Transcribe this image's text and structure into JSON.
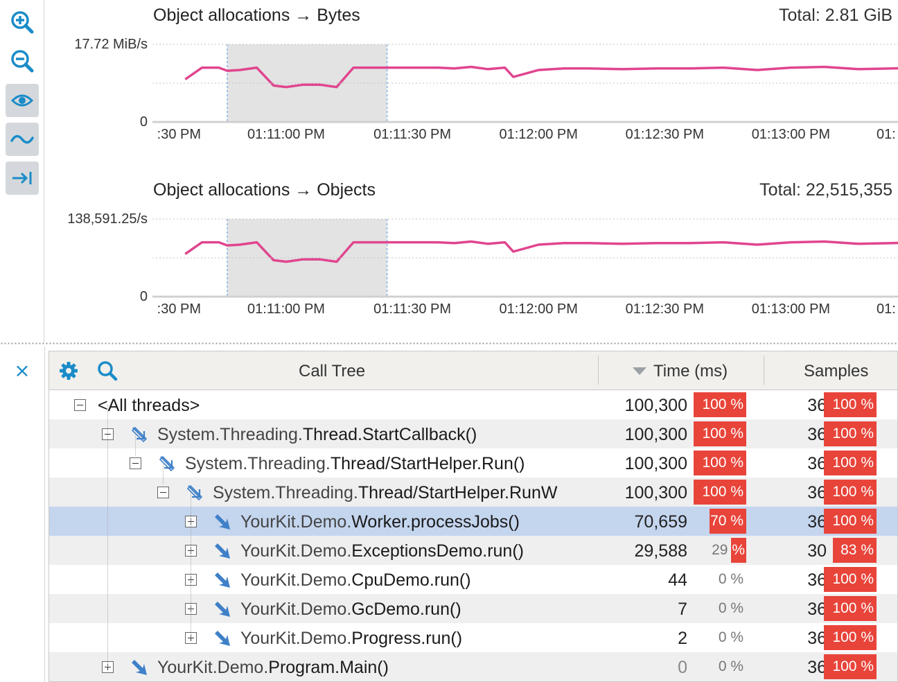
{
  "toolbar": {
    "buttons": [
      {
        "name": "zoom-in-button",
        "icon": "zoom-in-icon",
        "pressed": false
      },
      {
        "name": "zoom-out-button",
        "icon": "zoom-out-icon",
        "pressed": false
      },
      {
        "name": "show-values-button",
        "icon": "eye-icon",
        "pressed": true
      },
      {
        "name": "smooth-button",
        "icon": "wave-icon",
        "pressed": true
      },
      {
        "name": "scroll-to-end-button",
        "icon": "arrow-to-end-icon",
        "pressed": true
      }
    ]
  },
  "colors": {
    "accent": "#1a8cc8",
    "series_line": "#e0458f",
    "selection_band": "#e3e3e3",
    "percent_bar": "#e8443a",
    "selected_row": "#c4d5ee"
  },
  "chart_data": [
    {
      "type": "line",
      "title": "Object allocations → Bytes",
      "total": "Total: 2.81 GiB",
      "y_max_label": "17.72 MiB/s",
      "y_min_label": "0",
      "xticks": [
        ":30 PM",
        "01:11:00 PM",
        "01:11:30 PM",
        "01:12:00 PM",
        "01:12:30 PM",
        "01:13:00 PM",
        "01:"
      ],
      "selection_range_s": [
        -14,
        24
      ],
      "series": [
        {
          "x_s": [
            -24,
            -20,
            -16,
            -14,
            -11,
            -7,
            -3,
            0,
            4,
            8,
            12,
            16,
            20,
            24,
            28,
            32,
            36,
            40,
            44,
            48,
            52,
            54,
            60,
            66,
            72,
            80,
            88,
            96,
            104,
            112,
            120,
            128,
            136,
            144,
            152,
            160,
            168,
            176,
            180,
            186,
            192,
            200,
            208,
            216,
            224,
            232,
            240,
            248,
            256,
            264,
            272,
            280,
            288,
            296,
            306
          ],
          "y": [
            0.55,
            0.7,
            0.7,
            0.66,
            0.67,
            0.7,
            0.47,
            0.45,
            0.48,
            0.48,
            0.45,
            0.7,
            0.7,
            0.7,
            0.7,
            0.7,
            0.7,
            0.69,
            0.71,
            0.68,
            0.7,
            0.58,
            0.67,
            0.69,
            0.69,
            0.68,
            0.69,
            0.69,
            0.7,
            0.67,
            0.7,
            0.71,
            0.68,
            0.69,
            0.7,
            0.7,
            0.71,
            0.72,
            0.7,
            0.67,
            0.69,
            0.7,
            0.71,
            0.7,
            0.72,
            0.7,
            0.66,
            0.7,
            0.71,
            0.71,
            0.67,
            0.7,
            0.71,
            0.7,
            0.69
          ]
        }
      ]
    },
    {
      "type": "line",
      "title": "Object allocations → Objects",
      "total": "Total: 22,515,355",
      "y_max_label": "138,591.25/s",
      "y_min_label": "0",
      "xticks": [
        ":30 PM",
        "01:11:00 PM",
        "01:11:30 PM",
        "01:12:00 PM",
        "01:12:30 PM",
        "01:13:00 PM",
        "01:"
      ],
      "selection_range_s": [
        -14,
        24
      ],
      "series": [
        {
          "x_s": [
            -24,
            -20,
            -16,
            -14,
            -11,
            -7,
            -3,
            0,
            4,
            8,
            12,
            16,
            20,
            24,
            28,
            32,
            36,
            40,
            44,
            48,
            52,
            54,
            60,
            66,
            72,
            80,
            88,
            96,
            104,
            112,
            120,
            128,
            136,
            144,
            152,
            160,
            168,
            176,
            180,
            186,
            192,
            200,
            208,
            216,
            224,
            232,
            240,
            248,
            256,
            264,
            272,
            280,
            288,
            296,
            306
          ],
          "y": [
            0.55,
            0.7,
            0.7,
            0.66,
            0.67,
            0.7,
            0.47,
            0.45,
            0.48,
            0.48,
            0.45,
            0.7,
            0.7,
            0.7,
            0.7,
            0.7,
            0.7,
            0.69,
            0.71,
            0.68,
            0.7,
            0.58,
            0.67,
            0.69,
            0.69,
            0.68,
            0.69,
            0.69,
            0.7,
            0.67,
            0.7,
            0.71,
            0.68,
            0.69,
            0.7,
            0.7,
            0.71,
            0.72,
            0.7,
            0.67,
            0.69,
            0.7,
            0.71,
            0.7,
            0.72,
            0.7,
            0.66,
            0.7,
            0.71,
            0.71,
            0.67,
            0.7,
            0.71,
            0.7,
            0.69
          ]
        }
      ]
    }
  ],
  "close_label": "×",
  "table": {
    "columns": {
      "name": "Call Tree",
      "time": "Time (ms)",
      "samples": "Samples"
    },
    "rows": [
      {
        "depth": 0,
        "toggle": "minus",
        "icon": "none",
        "pkg": "",
        "name": "<All threads>",
        "time": "100,300",
        "time_pct": 100,
        "time_pct_label": "100 %",
        "samples": "36",
        "samples_pct": 100,
        "samples_pct_label": "100 %",
        "selected": false
      },
      {
        "depth": 1,
        "toggle": "minus",
        "icon": "outline",
        "pkg": "System.Threading.",
        "name": "Thread.StartCallback()",
        "time": "100,300",
        "time_pct": 100,
        "time_pct_label": "100 %",
        "samples": "36",
        "samples_pct": 100,
        "samples_pct_label": "100 %",
        "selected": false
      },
      {
        "depth": 2,
        "toggle": "minus",
        "icon": "outline",
        "pkg": "System.Threading.",
        "name": "Thread/StartHelper.Run()",
        "time": "100,300",
        "time_pct": 100,
        "time_pct_label": "100 %",
        "samples": "36",
        "samples_pct": 100,
        "samples_pct_label": "100 %",
        "selected": false
      },
      {
        "depth": 3,
        "toggle": "minus",
        "icon": "outline",
        "pkg": "System.Threading.",
        "name": "Thread/StartHelper.RunW",
        "time": "100,300",
        "time_pct": 100,
        "time_pct_label": "100 %",
        "samples": "36",
        "samples_pct": 100,
        "samples_pct_label": "100 %",
        "selected": false
      },
      {
        "depth": 4,
        "toggle": "plus",
        "icon": "filled",
        "pkg": "YourKit.Demo.",
        "name": "Worker.processJobs()",
        "time": "70,659",
        "time_pct": 70,
        "time_pct_label": "70 %",
        "samples": "36",
        "samples_pct": 100,
        "samples_pct_label": "100 %",
        "selected": true
      },
      {
        "depth": 4,
        "toggle": "plus",
        "icon": "filled",
        "pkg": "YourKit.Demo.",
        "name": "ExceptionsDemo.run()",
        "time": "29,588",
        "time_pct": 29,
        "time_pct_label": "29 %",
        "samples": "30",
        "samples_pct": 83,
        "samples_pct_label": "83 %",
        "selected": false
      },
      {
        "depth": 4,
        "toggle": "plus",
        "icon": "filled",
        "pkg": "YourKit.Demo.",
        "name": "CpuDemo.run()",
        "time": "44",
        "time_pct": 0,
        "time_pct_label": "0 %",
        "samples": "36",
        "samples_pct": 100,
        "samples_pct_label": "100 %",
        "selected": false
      },
      {
        "depth": 4,
        "toggle": "plus",
        "icon": "filled",
        "pkg": "YourKit.Demo.",
        "name": "GcDemo.run()",
        "time": "7",
        "time_pct": 0,
        "time_pct_label": "0 %",
        "samples": "36",
        "samples_pct": 100,
        "samples_pct_label": "100 %",
        "selected": false
      },
      {
        "depth": 4,
        "toggle": "plus",
        "icon": "filled",
        "pkg": "YourKit.Demo.",
        "name": "Progress.run()",
        "time": "2",
        "time_pct": 0,
        "time_pct_label": "0 %",
        "samples": "36",
        "samples_pct": 100,
        "samples_pct_label": "100 %",
        "selected": false
      },
      {
        "depth": 1,
        "toggle": "plus",
        "icon": "filled",
        "pkg": "YourKit.Demo.",
        "name": "Program.Main()",
        "time": "0",
        "time_pct": 0,
        "time_pct_label": "0 %",
        "samples": "36",
        "samples_pct": 100,
        "samples_pct_label": "100 %",
        "selected": false
      }
    ]
  }
}
